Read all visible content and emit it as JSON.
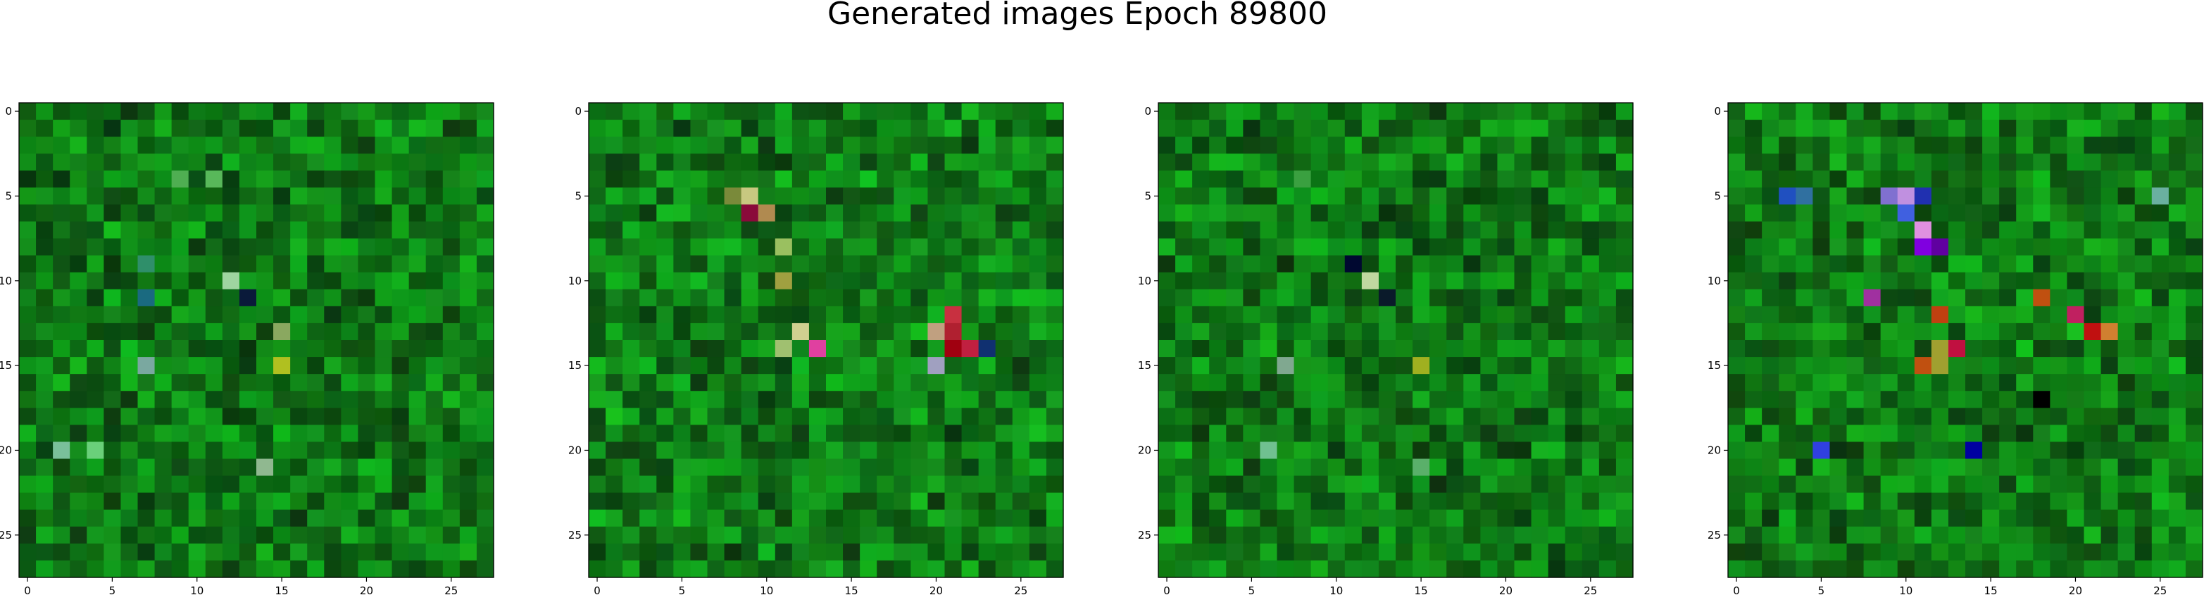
{
  "figure": {
    "title": "Generated images Epoch 89800"
  },
  "chart_data": [
    {
      "type": "heatmap",
      "panel": 1,
      "grid_size": 28,
      "xlim": [
        -0.5,
        27.5
      ],
      "ylim": [
        27.5,
        -0.5
      ],
      "xticks": [
        0,
        5,
        10,
        15,
        20,
        25
      ],
      "yticks": [
        0,
        5,
        10,
        15,
        20,
        25
      ],
      "grid": false,
      "dominant_color": "#0a7a12",
      "highlights": [
        {
          "row": 4,
          "col": 9,
          "color": "#4fae52"
        },
        {
          "row": 4,
          "col": 11,
          "color": "#58b85a"
        },
        {
          "row": 9,
          "col": 7,
          "color": "#2f8f6a"
        },
        {
          "row": 10,
          "col": 12,
          "color": "#9fd5a0"
        },
        {
          "row": 11,
          "col": 7,
          "color": "#1a6a80"
        },
        {
          "row": 11,
          "col": 13,
          "color": "#0a1a3a"
        },
        {
          "row": 13,
          "col": 15,
          "color": "#8aa860"
        },
        {
          "row": 15,
          "col": 7,
          "color": "#7aa8a0"
        },
        {
          "row": 15,
          "col": 15,
          "color": "#b0c020"
        },
        {
          "row": 20,
          "col": 2,
          "color": "#7ac09a"
        },
        {
          "row": 20,
          "col": 4,
          "color": "#6ad07a"
        },
        {
          "row": 21,
          "col": 14,
          "color": "#90b890"
        }
      ]
    },
    {
      "type": "heatmap",
      "panel": 2,
      "grid_size": 28,
      "xlim": [
        -0.5,
        27.5
      ],
      "ylim": [
        27.5,
        -0.5
      ],
      "xticks": [
        0,
        5,
        10,
        15,
        20,
        25
      ],
      "yticks": [
        0,
        5,
        10,
        15,
        20,
        25
      ],
      "grid": false,
      "dominant_color": "#0b7f14",
      "highlights": [
        {
          "row": 5,
          "col": 8,
          "color": "#7a8a3a"
        },
        {
          "row": 5,
          "col": 9,
          "color": "#c8c880"
        },
        {
          "row": 6,
          "col": 9,
          "color": "#8a0a3a"
        },
        {
          "row": 6,
          "col": 10,
          "color": "#b08a50"
        },
        {
          "row": 8,
          "col": 11,
          "color": "#9ac060"
        },
        {
          "row": 10,
          "col": 11,
          "color": "#a0a040"
        },
        {
          "row": 13,
          "col": 12,
          "color": "#d0d090"
        },
        {
          "row": 14,
          "col": 11,
          "color": "#a0c070"
        },
        {
          "row": 14,
          "col": 13,
          "color": "#e040a0"
        },
        {
          "row": 13,
          "col": 20,
          "color": "#c0a080"
        },
        {
          "row": 12,
          "col": 21,
          "color": "#c83040"
        },
        {
          "row": 13,
          "col": 21,
          "color": "#b02030"
        },
        {
          "row": 14,
          "col": 21,
          "color": "#a00010"
        },
        {
          "row": 14,
          "col": 22,
          "color": "#c02040"
        },
        {
          "row": 15,
          "col": 20,
          "color": "#a0a0c0"
        },
        {
          "row": 14,
          "col": 23,
          "color": "#103070"
        }
      ]
    },
    {
      "type": "heatmap",
      "panel": 3,
      "grid_size": 28,
      "xlim": [
        -0.5,
        27.5
      ],
      "ylim": [
        27.5,
        -0.5
      ],
      "xticks": [
        0,
        5,
        10,
        15,
        20,
        25
      ],
      "yticks": [
        0,
        5,
        10,
        15,
        20,
        25
      ],
      "grid": false,
      "dominant_color": "#0a7a12",
      "highlights": [
        {
          "row": 4,
          "col": 8,
          "color": "#3aa040"
        },
        {
          "row": 9,
          "col": 11,
          "color": "#000830"
        },
        {
          "row": 10,
          "col": 12,
          "color": "#c0d8a0"
        },
        {
          "row": 11,
          "col": 13,
          "color": "#0a1a2a"
        },
        {
          "row": 15,
          "col": 7,
          "color": "#80a890"
        },
        {
          "row": 15,
          "col": 15,
          "color": "#a0b020"
        },
        {
          "row": 20,
          "col": 6,
          "color": "#70c090"
        },
        {
          "row": 21,
          "col": 15,
          "color": "#5ab06a"
        }
      ]
    },
    {
      "type": "heatmap",
      "panel": 4,
      "grid_size": 28,
      "xlim": [
        -0.5,
        27.5
      ],
      "ylim": [
        27.5,
        -0.5
      ],
      "xticks": [
        0,
        5,
        10,
        15,
        20,
        25
      ],
      "yticks": [
        0,
        5,
        10,
        15,
        20,
        25
      ],
      "grid": false,
      "dominant_color": "#0b7d12",
      "highlights": [
        {
          "row": 5,
          "col": 3,
          "color": "#2050c0"
        },
        {
          "row": 5,
          "col": 4,
          "color": "#3070a0"
        },
        {
          "row": 5,
          "col": 9,
          "color": "#8070d0"
        },
        {
          "row": 5,
          "col": 10,
          "color": "#c090e0"
        },
        {
          "row": 5,
          "col": 11,
          "color": "#2030b0"
        },
        {
          "row": 5,
          "col": 25,
          "color": "#6ab0a0"
        },
        {
          "row": 6,
          "col": 10,
          "color": "#4060e0"
        },
        {
          "row": 7,
          "col": 11,
          "color": "#e090e0"
        },
        {
          "row": 8,
          "col": 11,
          "color": "#8000e0"
        },
        {
          "row": 8,
          "col": 12,
          "color": "#6000a0"
        },
        {
          "row": 11,
          "col": 8,
          "color": "#a030a0"
        },
        {
          "row": 11,
          "col": 18,
          "color": "#c05010"
        },
        {
          "row": 12,
          "col": 12,
          "color": "#c04010"
        },
        {
          "row": 12,
          "col": 20,
          "color": "#c02060"
        },
        {
          "row": 13,
          "col": 21,
          "color": "#c01010"
        },
        {
          "row": 13,
          "col": 22,
          "color": "#d08030"
        },
        {
          "row": 14,
          "col": 12,
          "color": "#a0a030"
        },
        {
          "row": 14,
          "col": 13,
          "color": "#c01040"
        },
        {
          "row": 15,
          "col": 11,
          "color": "#c05010"
        },
        {
          "row": 15,
          "col": 12,
          "color": "#a0a030"
        },
        {
          "row": 17,
          "col": 18,
          "color": "#000000"
        },
        {
          "row": 20,
          "col": 5,
          "color": "#3040e0"
        },
        {
          "row": 20,
          "col": 14,
          "color": "#0000a0"
        }
      ]
    }
  ]
}
